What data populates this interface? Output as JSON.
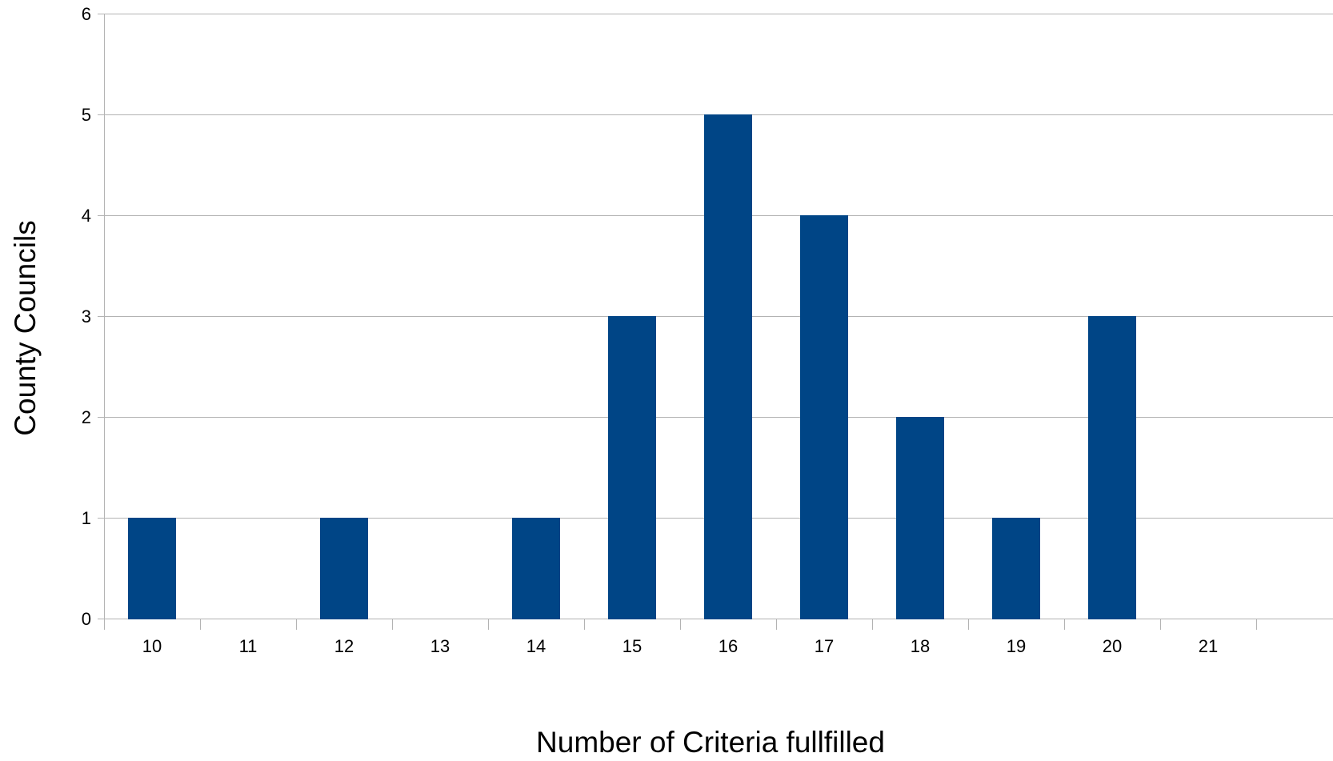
{
  "chart_data": {
    "type": "bar",
    "title": "",
    "xlabel": "Number of Criteria fullfilled",
    "ylabel": "County Councils",
    "categories": [
      "10",
      "11",
      "12",
      "13",
      "14",
      "15",
      "16",
      "17",
      "18",
      "19",
      "20",
      "21"
    ],
    "values": [
      1,
      0,
      1,
      0,
      1,
      3,
      5,
      4,
      2,
      1,
      3,
      0
    ],
    "ylim": [
      0,
      6
    ],
    "yticks": [
      0,
      1,
      2,
      3,
      4,
      5,
      6
    ],
    "grid": "horizontal",
    "legend": "none",
    "colors": {
      "bar": "#004586",
      "grid": "#b3b3b3",
      "axis": "#b3b3b3"
    }
  }
}
